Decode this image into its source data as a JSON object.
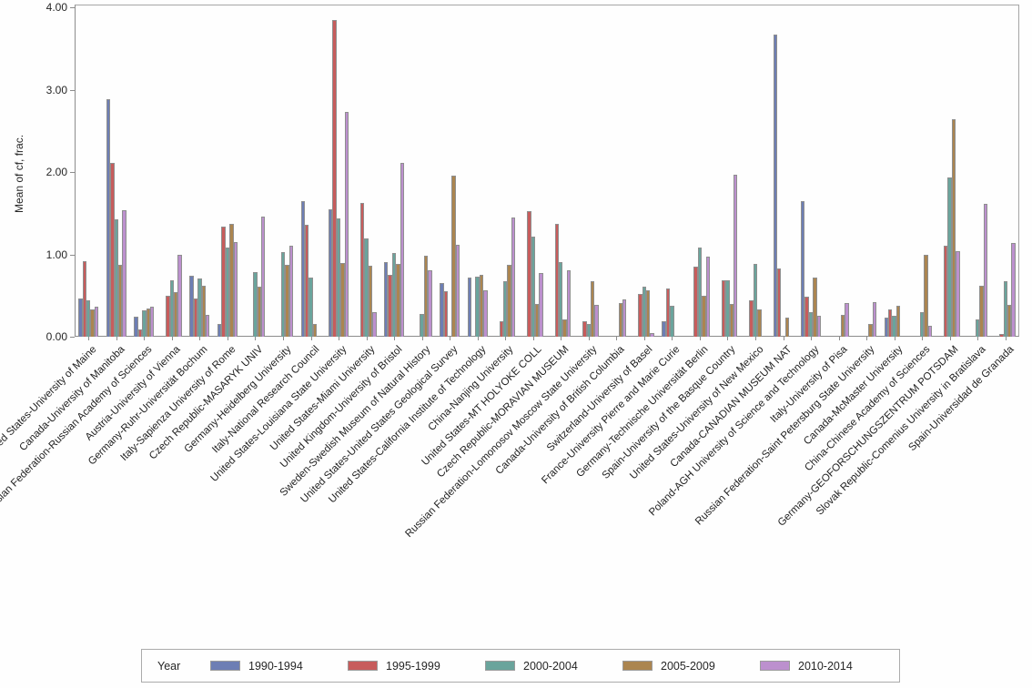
{
  "chart_data": {
    "type": "bar",
    "title": "",
    "ylabel": "Mean of cf, frac.",
    "xlabel": "",
    "ylim": [
      0,
      4
    ],
    "yticks": [
      "0.00",
      "1.00",
      "2.00",
      "3.00",
      "4.00"
    ],
    "grid": false,
    "legend_position": "bottom",
    "legend_title": "Year",
    "categories": [
      "United States-University of Maine",
      "Canada-University of Manitoba",
      "Russian Federation-Russian Academy of Sciences",
      "Austria-University of Vienna",
      "Germany-Ruhr-Universität Bochum",
      "Italy-Sapienza University of Rome",
      "Czech Republic-MASARYK UNIV",
      "Germany-Heidelberg University",
      "Italy-National Research Council",
      "United States-Louisiana State University",
      "United States-Miami University",
      "United Kingdom-University of Bristol",
      "Sweden-Swedish Museum of Natural History",
      "United States-United States Geological Survey",
      "United States-California Institute of Technology",
      "China-Nanjing University",
      "United States-MT HOLYOKE COLL",
      "Czech Republic-MORAVIAN MUSEUM",
      "Russian Federation-Lomonosov Moscow State University",
      "Canada-University of British Columbia",
      "Switzerland-University of Basel",
      "France-University Pierre and Marie Curie",
      "Germany-Technische Universität Berlin",
      "Spain-University of the Basque Country",
      "United States-University of New Mexico",
      "Canada-CANADIAN MUSEUM NAT",
      "Poland-AGH University of Science and Technology",
      "Italy-University of Pisa",
      "Russian Federation-Saint Petersburg State University",
      "Canada-McMaster University",
      "China-Chinese Academy of Sciences",
      "Germany-GEOFORSCHUNGSZENTRUM POTSDAM",
      "Slovak Republic-Comenius University in Bratislava",
      "Spain-Universidad de Granada"
    ],
    "series": [
      {
        "name": "1990-1994",
        "color": "#6D7EB4",
        "values": [
          0.46,
          2.88,
          0.24,
          null,
          0.74,
          0.15,
          null,
          null,
          1.65,
          1.55,
          null,
          0.91,
          null,
          0.65,
          0.72,
          null,
          null,
          null,
          null,
          null,
          null,
          0.19,
          null,
          null,
          null,
          3.67,
          1.65,
          null,
          null,
          0.23,
          null,
          null,
          null,
          null
        ]
      },
      {
        "name": "1995-1999",
        "color": "#C75C5C",
        "values": [
          0.92,
          2.11,
          0.09,
          0.5,
          0.46,
          1.34,
          null,
          null,
          1.36,
          3.85,
          1.62,
          0.75,
          null,
          0.55,
          null,
          0.19,
          1.53,
          1.37,
          0.19,
          null,
          0.52,
          0.59,
          0.85,
          0.69,
          0.44,
          0.83,
          0.49,
          null,
          null,
          0.33,
          null,
          1.1,
          null,
          0.03
        ]
      },
      {
        "name": "2000-2004",
        "color": "#6AA49C",
        "values": [
          0.44,
          1.43,
          0.32,
          0.68,
          0.71,
          1.08,
          0.78,
          1.03,
          0.72,
          1.44,
          1.19,
          1.02,
          0.28,
          null,
          0.73,
          0.67,
          1.22,
          0.91,
          0.15,
          null,
          0.61,
          0.38,
          1.08,
          0.69,
          0.88,
          null,
          0.3,
          null,
          null,
          0.25,
          0.3,
          1.93,
          0.21,
          0.67
        ]
      },
      {
        "name": "2005-2009",
        "color": "#AB8550",
        "values": [
          0.33,
          0.87,
          0.34,
          0.54,
          0.62,
          1.37,
          0.61,
          0.87,
          0.15,
          0.9,
          0.86,
          0.88,
          0.98,
          1.96,
          0.75,
          0.87,
          0.4,
          0.21,
          0.67,
          0.41,
          0.56,
          null,
          0.5,
          0.4,
          0.33,
          0.23,
          0.72,
          0.27,
          0.15,
          0.38,
          0.99,
          2.64,
          0.62,
          0.39
        ]
      },
      {
        "name": "2010-2014",
        "color": "#BC90CE",
        "values": [
          0.36,
          1.54,
          0.37,
          1.0,
          0.26,
          1.15,
          1.46,
          1.1,
          null,
          2.73,
          0.3,
          2.11,
          0.81,
          1.12,
          0.56,
          1.45,
          0.77,
          0.81,
          0.39,
          0.45,
          0.04,
          null,
          0.97,
          1.97,
          null,
          null,
          0.25,
          0.41,
          0.42,
          null,
          0.13,
          1.04,
          1.61,
          1.14
        ]
      }
    ]
  },
  "layout_text": {
    "y_axis_title": "Mean of cf, frac.",
    "legend_title": "Year"
  }
}
